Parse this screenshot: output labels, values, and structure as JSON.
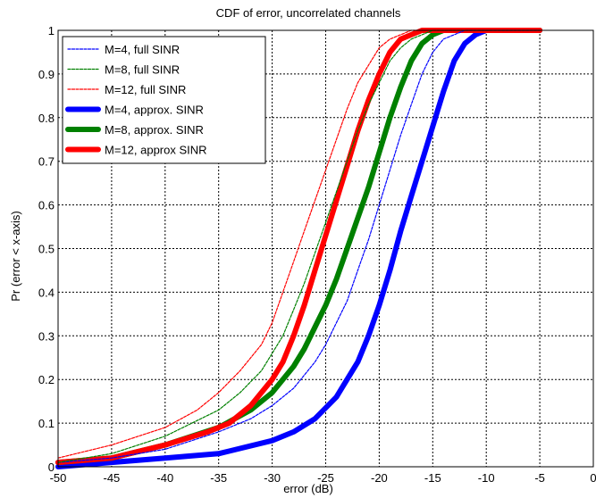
{
  "chart_data": {
    "type": "line",
    "title": "CDF of error, uncorrelated channels",
    "xlabel": "error (dB)",
    "ylabel": "Pr (error < x-axis)",
    "xlim": [
      -50,
      0
    ],
    "ylim": [
      0,
      1
    ],
    "xticks": [
      -50,
      -45,
      -40,
      -35,
      -30,
      -25,
      -20,
      -15,
      -10,
      -5,
      0
    ],
    "yticks": [
      0,
      0.1,
      0.2,
      0.3,
      0.4,
      0.5,
      0.6,
      0.7,
      0.8,
      0.9,
      1
    ],
    "grid": true,
    "legend_position": "top-left",
    "series": [
      {
        "name": "M=4, full SINR",
        "color": "#0000ff",
        "style": "thin",
        "x": [
          -50,
          -45,
          -40,
          -35,
          -32,
          -30,
          -28,
          -26,
          -25,
          -24,
          -23,
          -22,
          -21,
          -20,
          -19,
          -18,
          -17,
          -16,
          -15,
          -14,
          -13,
          -12,
          -11,
          -10,
          -8,
          -5
        ],
        "y": [
          0.01,
          0.02,
          0.04,
          0.08,
          0.11,
          0.14,
          0.18,
          0.24,
          0.28,
          0.33,
          0.38,
          0.45,
          0.52,
          0.6,
          0.68,
          0.76,
          0.83,
          0.9,
          0.95,
          0.98,
          0.99,
          1.0,
          1.0,
          1.0,
          1.0,
          1.0
        ]
      },
      {
        "name": "M=8, full SINR",
        "color": "#008000",
        "style": "thin",
        "x": [
          -50,
          -45,
          -40,
          -35,
          -33,
          -31,
          -30,
          -29,
          -28,
          -27,
          -26,
          -25,
          -24,
          -23,
          -22,
          -21,
          -20,
          -19,
          -18,
          -17,
          -16,
          -15,
          -14,
          -12,
          -10,
          -5
        ],
        "y": [
          0.01,
          0.03,
          0.07,
          0.13,
          0.17,
          0.22,
          0.26,
          0.3,
          0.36,
          0.42,
          0.49,
          0.56,
          0.63,
          0.7,
          0.77,
          0.83,
          0.88,
          0.93,
          0.96,
          0.98,
          0.99,
          1.0,
          1.0,
          1.0,
          1.0,
          1.0
        ]
      },
      {
        "name": "M=12, full SINR",
        "color": "#ff0000",
        "style": "thin",
        "x": [
          -50,
          -45,
          -40,
          -37,
          -35,
          -33,
          -31,
          -30,
          -29,
          -28,
          -27,
          -26,
          -25,
          -24,
          -23,
          -22,
          -21,
          -20,
          -19,
          -18,
          -17,
          -16,
          -15,
          -13,
          -10,
          -5
        ],
        "y": [
          0.02,
          0.05,
          0.09,
          0.13,
          0.17,
          0.22,
          0.28,
          0.33,
          0.4,
          0.47,
          0.54,
          0.61,
          0.68,
          0.75,
          0.82,
          0.88,
          0.92,
          0.96,
          0.98,
          0.99,
          1.0,
          1.0,
          1.0,
          1.0,
          1.0,
          1.0
        ]
      },
      {
        "name": "M=4, approx. SINR",
        "color": "#0000ff",
        "style": "thick",
        "x": [
          -50,
          -45,
          -40,
          -35,
          -30,
          -28,
          -26,
          -24,
          -22,
          -21,
          -20,
          -19,
          -18,
          -17,
          -16,
          -15,
          -14,
          -13,
          -12,
          -11,
          -10,
          -8,
          -5
        ],
        "y": [
          0.0,
          0.01,
          0.02,
          0.03,
          0.06,
          0.08,
          0.11,
          0.16,
          0.24,
          0.3,
          0.37,
          0.45,
          0.54,
          0.62,
          0.7,
          0.78,
          0.86,
          0.93,
          0.97,
          0.99,
          1.0,
          1.0,
          1.0
        ]
      },
      {
        "name": "M=8, approx. SINR",
        "color": "#008000",
        "style": "thick",
        "x": [
          -50,
          -45,
          -40,
          -35,
          -32,
          -30,
          -28,
          -27,
          -26,
          -25,
          -24,
          -23,
          -22,
          -21,
          -20,
          -19,
          -18,
          -17,
          -16,
          -15,
          -14,
          -12,
          -10,
          -5
        ],
        "y": [
          0.01,
          0.02,
          0.05,
          0.09,
          0.13,
          0.17,
          0.23,
          0.27,
          0.32,
          0.37,
          0.43,
          0.5,
          0.57,
          0.64,
          0.72,
          0.8,
          0.87,
          0.93,
          0.97,
          0.99,
          1.0,
          1.0,
          1.0,
          1.0
        ]
      },
      {
        "name": "M=12, approx SINR",
        "color": "#ff0000",
        "style": "thick",
        "x": [
          -50,
          -45,
          -40,
          -36,
          -34,
          -32,
          -30,
          -29,
          -28,
          -27,
          -26,
          -25,
          -24,
          -23,
          -22,
          -21,
          -20,
          -19,
          -18,
          -17,
          -16,
          -15,
          -13,
          -10,
          -5
        ],
        "y": [
          0.01,
          0.02,
          0.05,
          0.08,
          0.1,
          0.14,
          0.2,
          0.24,
          0.3,
          0.37,
          0.45,
          0.53,
          0.61,
          0.69,
          0.77,
          0.84,
          0.9,
          0.95,
          0.98,
          0.99,
          1.0,
          1.0,
          1.0,
          1.0,
          1.0
        ]
      }
    ]
  }
}
